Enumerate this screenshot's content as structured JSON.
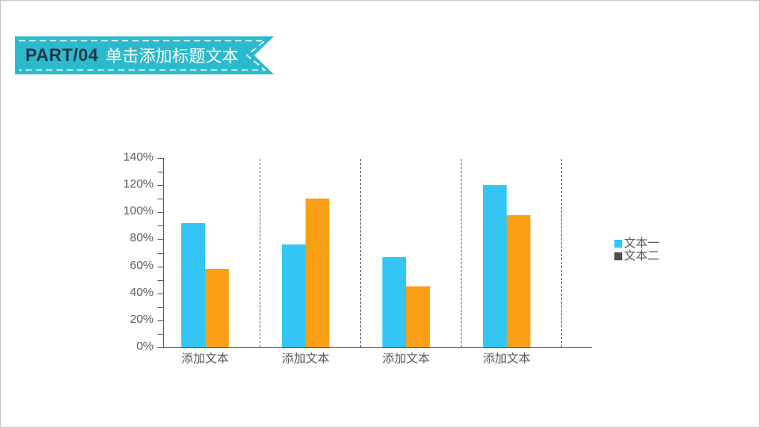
{
  "slide": {
    "border_color": "#c6c6c6",
    "background": "#ffffff"
  },
  "header": {
    "part_label": "PART/04",
    "title": "单击添加标题文本",
    "ribbon_color": "#2bbacd",
    "part_label_color": "#1e3347",
    "title_color": "#ffffff",
    "dashed_border_color": "#ffffff"
  },
  "chart_data": {
    "type": "bar",
    "title": "",
    "xlabel": "",
    "ylabel": "",
    "categories": [
      "添加文本",
      "添加文本",
      "添加文本",
      "添加文本"
    ],
    "series": [
      {
        "name": "文本一",
        "color": "#33c6f4",
        "values": [
          92,
          76,
          67,
          120
        ]
      },
      {
        "name": "文本二",
        "color": "#fa9e15",
        "values": [
          58,
          110,
          45,
          98
        ]
      }
    ],
    "value_unit": "%",
    "ylim": [
      0,
      140
    ],
    "ytick_major_step": 20,
    "ytick_minor_step": 10,
    "ytick_labels": [
      "0%",
      "20%",
      "40%",
      "60%",
      "80%",
      "100%",
      "120%",
      "140%"
    ],
    "grid": "off",
    "category_separators": "dashed-vertical",
    "legend_position": "right",
    "legend": [
      {
        "label": "文本一",
        "color": "#33c6f4"
      },
      {
        "label": "文本二",
        "color": "#4d4d4d"
      }
    ],
    "axis_color": "#595959",
    "tick_label_color": "#595959"
  }
}
